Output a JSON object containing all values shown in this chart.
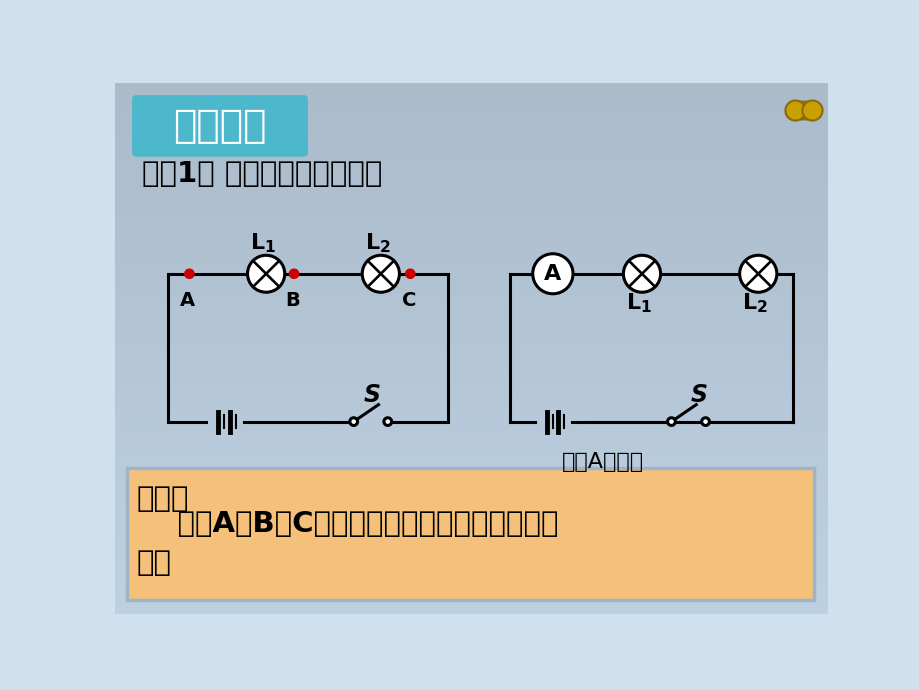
{
  "bg_top_color": "#c8dff0",
  "bg_bottom_color": "#dce8f0",
  "bg_color": "#cfe0ee",
  "title_box_color1": "#4db8cc",
  "title_box_color2": "#2a9ab0",
  "title_box_text": "实验探究",
  "title_box_text_color": "#ffffff",
  "subtitle_text": "探癹1： 串联电路的电流规律",
  "subtitle_color": "#000000",
  "bottom_box_color": "#f5c07a",
  "bottom_box_border_color": "#a0b4c8",
  "bottom_line1": "猜想：",
  "bottom_line2": "    流过A、B、C各点的电流大小可能存在什么关",
  "bottom_line3": "系？",
  "bottom_text_color": "#000000",
  "circuit2_caption": "测量A点电流"
}
